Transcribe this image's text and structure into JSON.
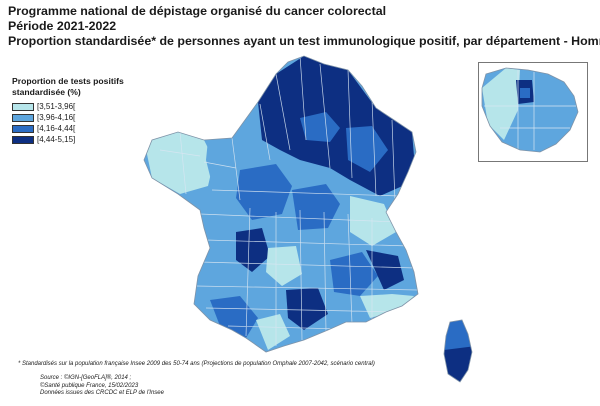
{
  "title": {
    "line1": "Programme national de dépistage organisé du cancer colorectal",
    "line2": "Période 2021-2022",
    "line3": "Proportion standardisée* de personnes ayant un test immunologique positif, par département - Hommes"
  },
  "legend": {
    "title_line1": "Proportion de tests positifs",
    "title_line2": "standardisée (%)",
    "items": [
      {
        "label": "[3,51-3,96[",
        "color": "#b6e5ea"
      },
      {
        "label": "[3,96-4,16[",
        "color": "#5ea6de"
      },
      {
        "label": "[4,16-4,44[",
        "color": "#2a6cc4"
      },
      {
        "label": "[4,44-5,15]",
        "color": "#0d2f82"
      }
    ]
  },
  "footnote": "* Standardisés sur la population française Insee 2009 des 50-74 ans (Projections de population Omphale 2007-2042, scénario central)",
  "sources": {
    "line1": "Source : ©IGN-[GeoFLA]®, 2014 ;",
    "line2": "©Santé publique France, 15/02/2023",
    "line3": "Données issues des CRCDC et ELP de l'Insee"
  }
}
